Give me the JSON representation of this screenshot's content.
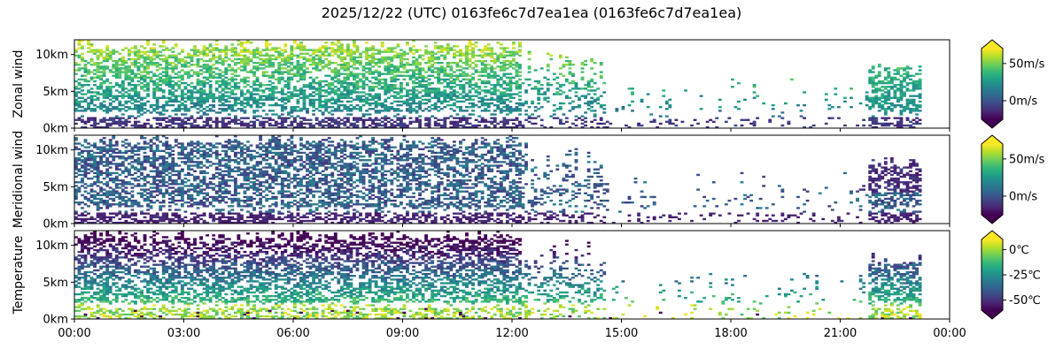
{
  "title": "2025/12/22 (UTC) 0163fe6c7d7ea1ea (0163fe6c7d7ea1ea)",
  "chart_data": [
    {
      "type": "heatmap",
      "ylabel": "Zonal wind",
      "x_ticks": [
        "00:00",
        "03:00",
        "06:00",
        "09:00",
        "12:00",
        "15:00",
        "18:00",
        "21:00",
        "00:00"
      ],
      "y_ticks": [
        "0km",
        "5km",
        "10km"
      ],
      "xlim_hours": [
        0,
        24
      ],
      "ylim_km": [
        0,
        12
      ],
      "colormap": "viridis",
      "colorbar": {
        "ticks": [
          "50m/s",
          "0m/s"
        ],
        "tick_values": [
          50,
          0
        ],
        "range": [
          -25,
          70
        ],
        "extend": "both"
      }
    },
    {
      "type": "heatmap",
      "ylabel": "Meridional wind",
      "x_ticks": [
        "00:00",
        "03:00",
        "06:00",
        "09:00",
        "12:00",
        "15:00",
        "18:00",
        "21:00",
        "00:00"
      ],
      "y_ticks": [
        "0km",
        "5km",
        "10km"
      ],
      "xlim_hours": [
        0,
        24
      ],
      "ylim_km": [
        0,
        12
      ],
      "colormap": "viridis",
      "colorbar": {
        "ticks": [
          "50m/s",
          "0m/s"
        ],
        "tick_values": [
          50,
          0
        ],
        "range": [
          -25,
          70
        ],
        "extend": "both"
      }
    },
    {
      "type": "heatmap",
      "ylabel": "Temperature",
      "x_ticks": [
        "00:00",
        "03:00",
        "06:00",
        "09:00",
        "12:00",
        "15:00",
        "18:00",
        "21:00",
        "00:00"
      ],
      "y_ticks": [
        "0km",
        "5km",
        "10km"
      ],
      "xlim_hours": [
        0,
        24
      ],
      "ylim_km": [
        0,
        12
      ],
      "colormap": "viridis",
      "colorbar": {
        "ticks": [
          "0℃",
          "-25℃",
          "-50℃"
        ],
        "tick_values": [
          0,
          -25,
          -50
        ],
        "range": [
          -60,
          10
        ],
        "extend": "both"
      }
    }
  ],
  "colors": {
    "viridis": [
      "#440154",
      "#482878",
      "#3e4989",
      "#31688e",
      "#26828e",
      "#1f9e89",
      "#35b779",
      "#6ece58",
      "#b5de2b",
      "#fde725"
    ],
    "axis": "#000000",
    "background": "#ffffff"
  }
}
